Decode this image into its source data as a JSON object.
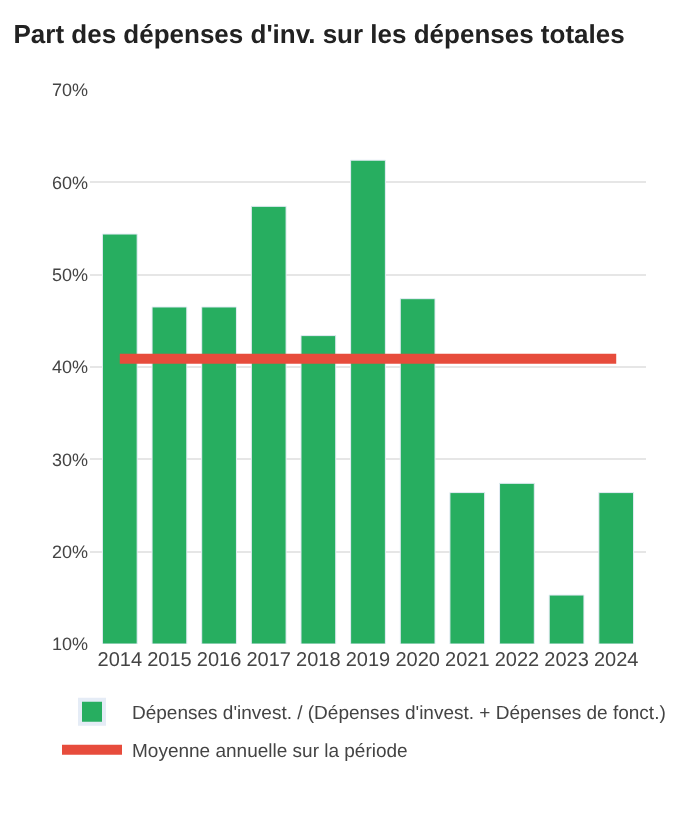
{
  "chart_data": {
    "type": "bar",
    "title": "Part des dépenses d'inv. sur les dépenses totales",
    "categories": [
      "2014",
      "2015",
      "2016",
      "2017",
      "2018",
      "2019",
      "2020",
      "2021",
      "2022",
      "2023",
      "2024"
    ],
    "series": [
      {
        "name": "Dépenses d'invest. / (Dépenses d'invest. + Dépenses de fonct.)",
        "color": "#27ae60",
        "values": [
          54.4,
          46.5,
          46.5,
          57.4,
          43.4,
          62.4,
          47.4,
          26.4,
          27.4,
          15.3,
          26.4
        ]
      },
      {
        "name": "Moyenne annuelle sur la période",
        "type": "line",
        "color": "#e74c3c",
        "values": [
          40.9,
          40.9,
          40.9,
          40.9,
          40.9,
          40.9,
          40.9,
          40.9,
          40.9,
          40.9,
          40.9
        ]
      }
    ],
    "ylim": [
      10,
      70
    ],
    "yticks": [
      {
        "value": 10,
        "label": "10%"
      },
      {
        "value": 20,
        "label": "20%"
      },
      {
        "value": 30,
        "label": "30%"
      },
      {
        "value": 40,
        "label": "40%"
      },
      {
        "value": 50,
        "label": "50%"
      },
      {
        "value": 60,
        "label": "60%"
      },
      {
        "value": 70,
        "label": "70%"
      }
    ],
    "grid": "y",
    "legend": "bottom",
    "marker": "none"
  }
}
